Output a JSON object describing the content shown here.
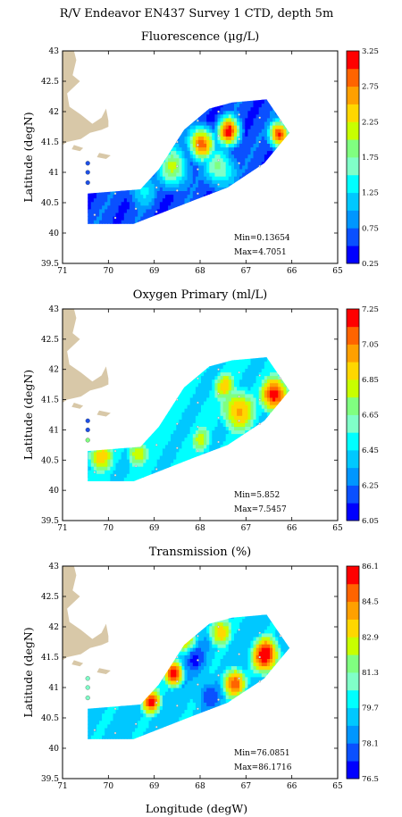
{
  "figure_title": "R/V Endeavor EN437 Survey 1 CTD, depth 5m",
  "xlabel": "Longitude (degW)",
  "ylabel": "Latitude (degN)",
  "x_ticks": [
    "71",
    "70",
    "69",
    "68",
    "67",
    "66",
    "65"
  ],
  "y_ticks": [
    "43",
    "42.5",
    "42",
    "41.5",
    "41",
    "40.5",
    "40",
    "39.5"
  ],
  "colors": {
    "land": "#d8c8a8",
    "frame": "#000000",
    "station_marker": "#a0a0a0",
    "colormap": [
      "#0000ff",
      "#0a50ff",
      "#0096ff",
      "#00c8ff",
      "#00ffff",
      "#80ffc8",
      "#80ff80",
      "#c8ff00",
      "#ffd700",
      "#ffa000",
      "#ff6400",
      "#ff0000"
    ]
  },
  "chart_data": [
    {
      "type": "heatmap",
      "title": "Fluorescence (µg/L)",
      "xlim": [
        71,
        65
      ],
      "ylim": [
        39.5,
        43
      ],
      "min_label": "Min=0.13654",
      "max_label": "Max=4.7051",
      "colorbar_ticks": [
        "3.25",
        "2.75",
        "2.25",
        "1.75",
        "1.25",
        "0.75",
        "0.25"
      ],
      "colorbar_range": [
        0.25,
        3.25
      ],
      "coastal_stations": [
        {
          "lon": 70.45,
          "lat": 41.15,
          "color": "#1e50e6"
        },
        {
          "lon": 70.45,
          "lat": 41.0,
          "color": "#1e50e6"
        },
        {
          "lon": 70.45,
          "lat": 40.83,
          "color": "#1e50e6"
        }
      ],
      "hotspots": [
        {
          "lon": 68.0,
          "lat": 41.45,
          "level": 0.92,
          "r": 0.28
        },
        {
          "lon": 67.4,
          "lat": 41.65,
          "level": 0.95,
          "r": 0.25
        },
        {
          "lon": 66.3,
          "lat": 41.6,
          "level": 1.0,
          "r": 0.22
        },
        {
          "lon": 68.6,
          "lat": 41.05,
          "level": 0.6,
          "r": 0.35
        },
        {
          "lon": 67.6,
          "lat": 41.05,
          "level": 0.55,
          "r": 0.35
        },
        {
          "lon": 69.3,
          "lat": 40.7,
          "level": 0.35,
          "r": 0.35
        }
      ],
      "background_level": 0.12
    },
    {
      "type": "heatmap",
      "title": "Oxygen Primary (ml/L)",
      "xlim": [
        71,
        65
      ],
      "ylim": [
        39.5,
        43
      ],
      "min_label": "Min=5.852",
      "max_label": "Max=7.5457",
      "colorbar_ticks": [
        "7.25",
        "7.05",
        "6.85",
        "6.65",
        "6.45",
        "6.25",
        "6.05"
      ],
      "colorbar_range": [
        6.05,
        7.25
      ],
      "coastal_stations": [
        {
          "lon": 70.45,
          "lat": 41.15,
          "color": "#1e50e6"
        },
        {
          "lon": 70.45,
          "lat": 41.0,
          "color": "#1e50e6"
        },
        {
          "lon": 70.45,
          "lat": 40.83,
          "color": "#80ff80"
        }
      ],
      "hotspots": [
        {
          "lon": 66.4,
          "lat": 41.55,
          "level": 1.0,
          "r": 0.35
        },
        {
          "lon": 67.2,
          "lat": 41.3,
          "level": 0.78,
          "r": 0.45
        },
        {
          "lon": 70.2,
          "lat": 40.55,
          "level": 0.72,
          "r": 0.35
        },
        {
          "lon": 69.4,
          "lat": 40.6,
          "level": 0.68,
          "r": 0.3
        },
        {
          "lon": 67.5,
          "lat": 41.7,
          "level": 0.7,
          "r": 0.3
        },
        {
          "lon": 68.0,
          "lat": 40.8,
          "level": 0.6,
          "r": 0.3
        }
      ],
      "background_level": 0.35
    },
    {
      "type": "heatmap",
      "title": "Transmission (%)",
      "xlim": [
        71,
        65
      ],
      "ylim": [
        39.5,
        43
      ],
      "min_label": "Min=76.0851",
      "max_label": "Max=86.1716",
      "colorbar_ticks": [
        "86.1",
        "84.5",
        "82.9",
        "81.3",
        "79.7",
        "78.1",
        "76.5"
      ],
      "colorbar_range": [
        76.5,
        86.1
      ],
      "coastal_stations": [
        {
          "lon": 70.45,
          "lat": 41.15,
          "color": "#80ffc8"
        },
        {
          "lon": 70.45,
          "lat": 41.0,
          "color": "#80ffc8"
        },
        {
          "lon": 70.45,
          "lat": 40.83,
          "color": "#80ffc8"
        }
      ],
      "hotspots": [
        {
          "lon": 66.6,
          "lat": 41.5,
          "level": 1.0,
          "r": 0.35
        },
        {
          "lon": 68.6,
          "lat": 41.2,
          "level": 0.95,
          "r": 0.25
        },
        {
          "lon": 67.3,
          "lat": 41.05,
          "level": 0.9,
          "r": 0.3
        },
        {
          "lon": 69.1,
          "lat": 40.75,
          "level": 0.92,
          "r": 0.25
        },
        {
          "lon": 67.6,
          "lat": 41.9,
          "level": 0.75,
          "r": 0.3
        },
        {
          "lon": 68.3,
          "lat": 41.7,
          "level": 0.7,
          "r": 0.25
        }
      ],
      "coldspots": [
        {
          "lon": 68.15,
          "lat": 41.45,
          "level": 0.08,
          "r": 0.2
        },
        {
          "lon": 67.85,
          "lat": 40.85,
          "level": 0.1,
          "r": 0.2
        }
      ],
      "background_level": 0.3
    }
  ]
}
